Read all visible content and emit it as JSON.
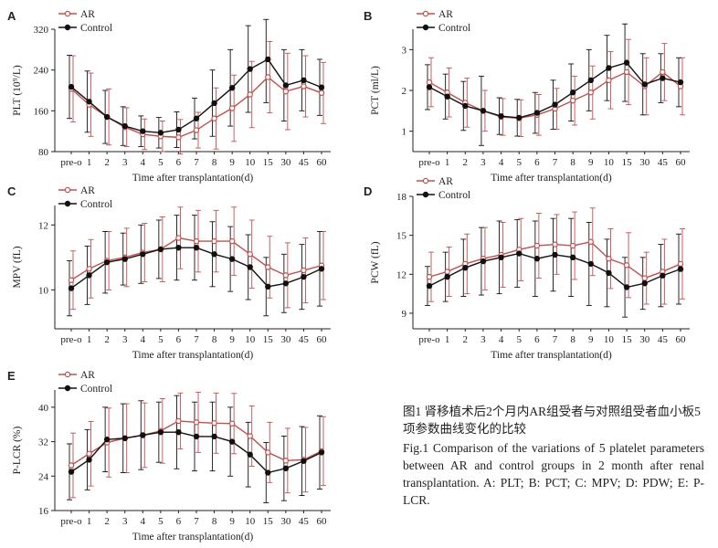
{
  "figure": {
    "caption_cn": "图1 肾移植术后2个月内AR组受者与对照组受者血小板5项参数曲线变化的比较",
    "caption_en": "Fig.1 Comparison of the variations of 5 platelet parameters between AR and control groups in 2 month after renal transplantation. A: PLT; B: PCT; C: MPV; D: PDW; E: P-LCR."
  },
  "colors": {
    "ar": "#c0504d",
    "control": "#111111"
  },
  "chart_data": [
    {
      "panel": "A",
      "type": "line",
      "ylabel": "PLT (10⁹/L)",
      "xlabel": "Time after transplantation(d)",
      "categories": [
        "pre-o",
        "1",
        "2",
        "3",
        "4",
        "5",
        "6",
        "7",
        "8",
        "9",
        "10",
        "15",
        "30",
        "45",
        "60"
      ],
      "ylim": [
        80,
        320
      ],
      "yticks": [
        80,
        160,
        240,
        320
      ],
      "legend": [
        "AR",
        "Control"
      ],
      "series": [
        {
          "name": "AR",
          "values": [
            203,
            172,
            148,
            128,
            114,
            110,
            108,
            122,
            145,
            165,
            192,
            226,
            198,
            208,
            195
          ],
          "err": [
            65,
            62,
            55,
            38,
            30,
            30,
            35,
            35,
            60,
            65,
            65,
            70,
            75,
            60,
            60
          ]
        },
        {
          "name": "Control",
          "values": [
            207,
            178,
            148,
            130,
            120,
            117,
            123,
            145,
            175,
            205,
            242,
            261,
            210,
            220,
            206
          ],
          "err": [
            62,
            60,
            52,
            38,
            30,
            30,
            35,
            40,
            65,
            75,
            85,
            85,
            70,
            60,
            55
          ]
        }
      ]
    },
    {
      "panel": "B",
      "type": "line",
      "ylabel": "PCT (ml/L)",
      "xlabel": "Time after transplantation(d)",
      "categories": [
        "pre-o",
        "1",
        "2",
        "3",
        "4",
        "5",
        "6",
        "7",
        "8",
        "9",
        "10",
        "15",
        "30",
        "45",
        "60"
      ],
      "ylim": [
        0.5,
        3.5
      ],
      "yticks": [
        1,
        2,
        3
      ],
      "legend": [
        "AR",
        "Control"
      ],
      "series": [
        {
          "name": "AR",
          "values": [
            2.2,
            1.95,
            1.7,
            1.5,
            1.35,
            1.32,
            1.4,
            1.55,
            1.75,
            1.95,
            2.25,
            2.45,
            2.1,
            2.45,
            2.1
          ],
          "err": [
            0.6,
            0.6,
            0.6,
            0.5,
            0.45,
            0.45,
            0.5,
            0.5,
            0.6,
            0.65,
            0.7,
            0.8,
            0.7,
            0.7,
            0.7
          ]
        },
        {
          "name": "Control",
          "values": [
            2.08,
            1.85,
            1.62,
            1.5,
            1.37,
            1.33,
            1.45,
            1.65,
            1.95,
            2.25,
            2.55,
            2.68,
            2.15,
            2.3,
            2.2
          ],
          "err": [
            0.55,
            0.55,
            0.6,
            0.85,
            0.45,
            0.45,
            0.5,
            0.6,
            0.7,
            0.75,
            0.8,
            0.95,
            0.75,
            0.6,
            0.6
          ]
        }
      ]
    },
    {
      "panel": "C",
      "type": "line",
      "ylabel": "MPV (fL)",
      "xlabel": "Time after transplantation(d)",
      "categories": [
        "pre-o",
        "1",
        "2",
        "3",
        "4",
        "5",
        "6",
        "7",
        "8",
        "9",
        "10",
        "15",
        "30",
        "45",
        "60"
      ],
      "ylim": [
        8.8,
        12.6
      ],
      "yticks": [
        10,
        12
      ],
      "legend": [
        "AR",
        "Control"
      ],
      "series": [
        {
          "name": "AR",
          "values": [
            10.3,
            10.65,
            10.9,
            11.0,
            11.15,
            11.25,
            11.6,
            11.5,
            11.5,
            11.5,
            11.1,
            10.7,
            10.45,
            10.6,
            10.75
          ],
          "err": [
            0.9,
            0.9,
            0.9,
            0.9,
            0.9,
            1.0,
            0.95,
            0.95,
            0.95,
            1.05,
            1.05,
            0.95,
            1.0,
            1.0,
            1.05
          ]
        },
        {
          "name": "Control",
          "values": [
            10.05,
            10.45,
            10.85,
            10.95,
            11.1,
            11.25,
            11.3,
            11.3,
            11.1,
            10.95,
            10.7,
            10.1,
            10.2,
            10.4,
            10.65
          ],
          "err": [
            0.85,
            0.9,
            0.95,
            0.8,
            0.9,
            0.9,
            1.0,
            1.0,
            1.0,
            1.0,
            1.0,
            0.9,
            0.9,
            1.0,
            1.15
          ]
        }
      ]
    },
    {
      "panel": "D",
      "type": "line",
      "ylabel": "PCW (fL)",
      "xlabel": "Time after transplantation(d)",
      "categories": [
        "pre-o",
        "1",
        "2",
        "3",
        "4",
        "5",
        "6",
        "7",
        "8",
        "9",
        "10",
        "15",
        "30",
        "45",
        "60"
      ],
      "ylim": [
        7.8,
        18
      ],
      "yticks": [
        9,
        12,
        15,
        18
      ],
      "legend": [
        "AR",
        "Control"
      ],
      "series": [
        {
          "name": "AR",
          "values": [
            11.8,
            12.2,
            12.8,
            13.2,
            13.5,
            13.9,
            14.2,
            14.3,
            14.2,
            14.5,
            13.2,
            12.7,
            11.7,
            12.2,
            12.8
          ],
          "err": [
            1.9,
            1.9,
            2.3,
            2.4,
            2.5,
            2.4,
            2.5,
            2.3,
            2.6,
            2.6,
            2.3,
            2.5,
            2.0,
            2.5,
            2.7
          ]
        },
        {
          "name": "Control",
          "values": [
            11.1,
            11.8,
            12.5,
            13.0,
            13.3,
            13.6,
            13.2,
            13.5,
            13.3,
            12.8,
            12.1,
            11.0,
            11.3,
            11.9,
            12.4
          ],
          "err": [
            1.5,
            1.9,
            2.2,
            2.6,
            2.8,
            2.6,
            2.9,
            2.8,
            3.0,
            3.2,
            2.6,
            2.3,
            2.0,
            2.4,
            2.7
          ]
        }
      ]
    },
    {
      "panel": "E",
      "type": "line",
      "ylabel": "P-LCR (%)",
      "xlabel": "Time after transplantation(d)",
      "categories": [
        "pre-o",
        "1",
        "2",
        "3",
        "4",
        "5",
        "6",
        "7",
        "8",
        "9",
        "10",
        "15",
        "30",
        "45",
        "60"
      ],
      "ylim": [
        16,
        44
      ],
      "yticks": [
        16,
        24,
        32,
        40
      ],
      "legend": [
        "AR",
        "Control"
      ],
      "series": [
        {
          "name": "AR",
          "values": [
            26.5,
            29.2,
            31.8,
            32.8,
            33.5,
            34.5,
            36.8,
            36.5,
            36.3,
            36.2,
            33.3,
            29.5,
            27.6,
            27.8,
            29.8
          ],
          "err": [
            7.5,
            7.5,
            8.0,
            8.0,
            7.5,
            7.5,
            6.5,
            7.0,
            7.0,
            7.0,
            7.0,
            7.0,
            7.5,
            7.5,
            8.0
          ]
        },
        {
          "name": "Control",
          "values": [
            25.0,
            27.8,
            32.5,
            32.8,
            33.5,
            34.2,
            34.2,
            33.2,
            33.2,
            32.0,
            29.0,
            24.8,
            25.8,
            27.5,
            29.5
          ],
          "err": [
            6.5,
            7.0,
            7.5,
            8.0,
            8.0,
            7.0,
            8.5,
            8.0,
            8.0,
            8.0,
            7.5,
            7.0,
            7.5,
            8.0,
            8.5
          ]
        }
      ]
    }
  ]
}
